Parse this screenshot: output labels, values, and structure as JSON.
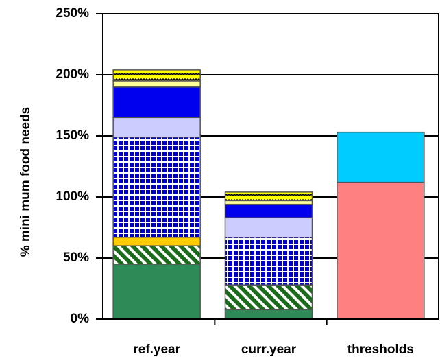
{
  "chart_data": {
    "type": "stacked_bar",
    "y_label": "% mini mum food needs",
    "categories": [
      "ref.year",
      "curr.year",
      "thresholds"
    ],
    "series": [
      {
        "color": "#2e8b57",
        "values": [
          45,
          8,
          null
        ]
      },
      {
        "color": "#1a6b1a",
        "pattern": "diagonal",
        "values": [
          15,
          20,
          null
        ]
      },
      {
        "color": "#ffcc00",
        "values": [
          7,
          null,
          null
        ]
      },
      {
        "color": "#0000cc",
        "pattern": "grid",
        "values": [
          82,
          39,
          null
        ]
      },
      {
        "color": "#ccccff",
        "values": [
          16,
          16,
          null
        ]
      },
      {
        "color": "#0000ee",
        "values": [
          25,
          11,
          null
        ]
      },
      {
        "color": "#ffff99",
        "values": [
          5,
          3,
          null
        ]
      },
      {
        "color": "#ffff00",
        "pattern": "zigzag",
        "values": [
          9,
          7,
          null
        ]
      },
      {
        "color": "#ff8080",
        "values": [
          null,
          null,
          112
        ]
      },
      {
        "color": "#00ccff",
        "values": [
          null,
          null,
          41
        ]
      }
    ],
    "ylim": [
      0,
      250
    ],
    "yticks": [
      {
        "value": 0,
        "label": "0%"
      },
      {
        "value": 50,
        "label": "50%"
      },
      {
        "value": 100,
        "label": "100%"
      },
      {
        "value": 150,
        "label": "150%"
      },
      {
        "value": 200,
        "label": "200%"
      },
      {
        "value": 250,
        "label": "250%"
      }
    ],
    "grid": true
  }
}
